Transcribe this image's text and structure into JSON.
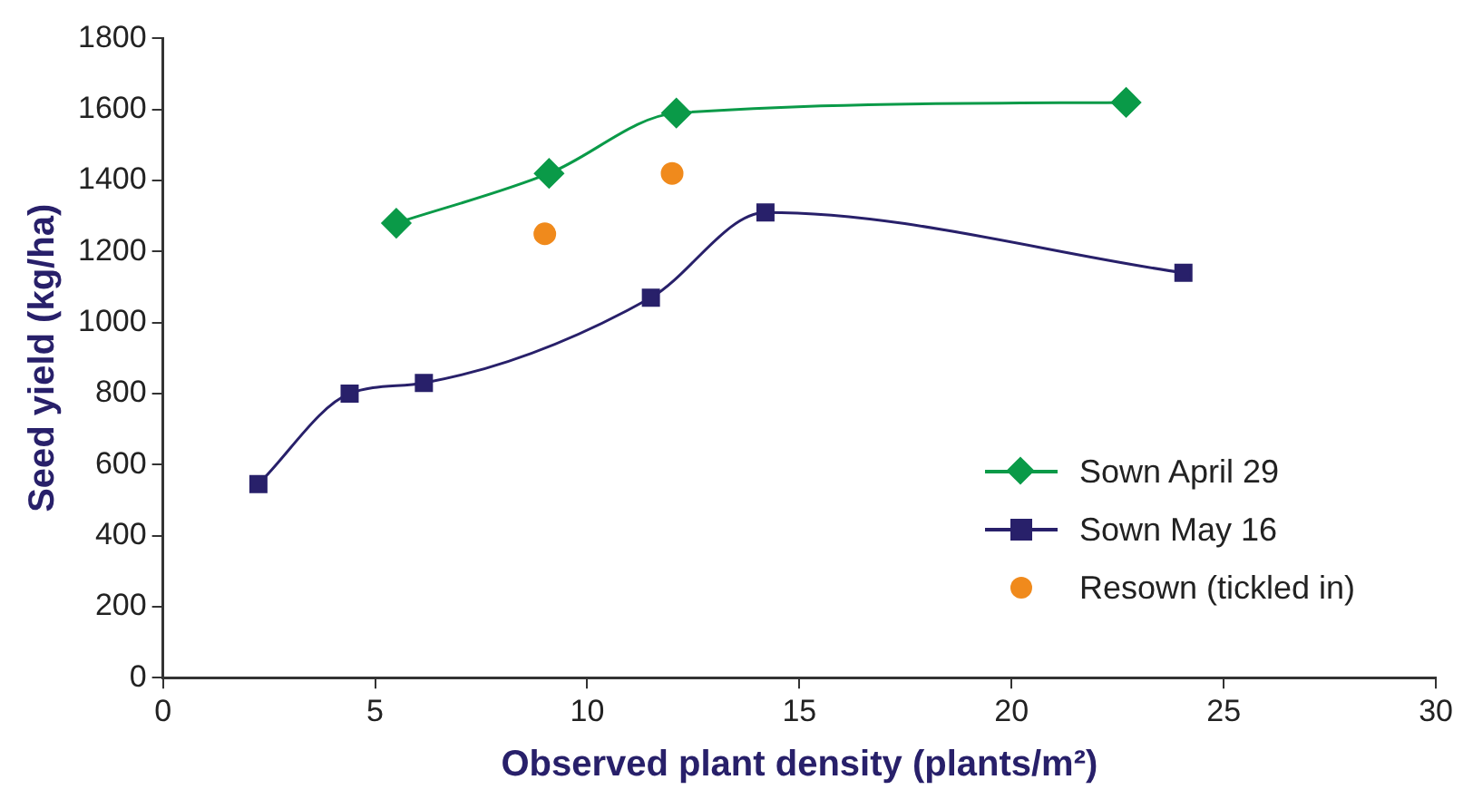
{
  "chart_data": {
    "type": "line",
    "xlabel": "Observed plant density (plants/m²)",
    "ylabel": "Seed yield (kg/ha)",
    "xlim": [
      0,
      30
    ],
    "xticks": [
      0,
      5,
      10,
      15,
      20,
      25,
      30
    ],
    "ylim": [
      0,
      1800
    ],
    "yticks": [
      0,
      200,
      400,
      600,
      800,
      1000,
      1200,
      1400,
      1600,
      1800
    ],
    "grid": false,
    "legend": "bottom right",
    "series": [
      {
        "name": "Sown April 29",
        "color": "#0a9a48",
        "marker": "diamond",
        "x": [
          5.5,
          9.1,
          12.1,
          22.7
        ],
        "values": [
          1280,
          1420,
          1590,
          1620
        ]
      },
      {
        "name": "Sown May 16",
        "color": "#28206a",
        "marker": "square",
        "x": [
          2.25,
          4.4,
          6.15,
          11.5,
          14.2,
          24.05
        ],
        "values": [
          545,
          800,
          830,
          1070,
          1310,
          1140
        ]
      },
      {
        "name": "Resown (tickled in)",
        "type": "scatter",
        "color": "#f08a1c",
        "marker": "circle",
        "x": [
          9.0,
          12.0
        ],
        "values": [
          1250,
          1420
        ]
      }
    ]
  }
}
